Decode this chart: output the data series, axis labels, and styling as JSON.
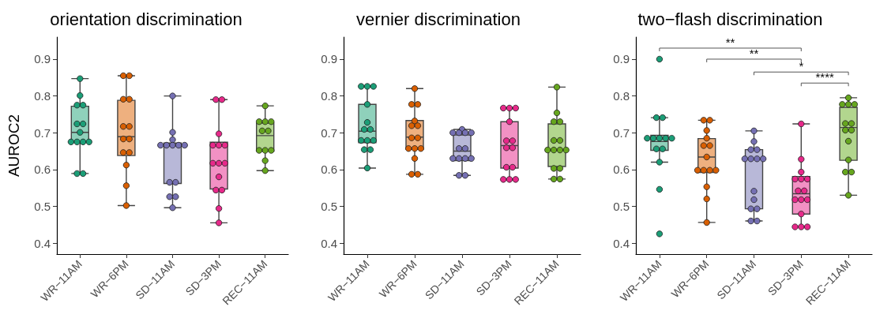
{
  "chart_data": [
    {
      "type": "box",
      "title": "orientation discrimination",
      "ylabel": "AUROC2",
      "categories": [
        "WR−11AM",
        "WR−6PM",
        "SD−11AM",
        "SD−3PM",
        "REC−11AM"
      ],
      "ylim": [
        0.37,
        0.96
      ],
      "yticks": [
        0.4,
        0.5,
        0.6,
        0.7,
        0.8,
        0.9
      ],
      "grid": false,
      "marker": "circle",
      "series": [
        {
          "colors": [
            "#8fd1bb",
            "#eeb07f",
            "#b8b8d8",
            "#f291c4",
            "#b2d68e"
          ],
          "boxes": [
            {
              "low": 0.589,
              "q1": 0.675,
              "median": 0.701,
              "q3": 0.772,
              "high": 0.847
            },
            {
              "low": 0.502,
              "q1": 0.638,
              "median": 0.689,
              "q3": 0.788,
              "high": 0.855
            },
            {
              "low": 0.496,
              "q1": 0.562,
              "median": 0.665,
              "q3": 0.672,
              "high": 0.8
            },
            {
              "low": 0.455,
              "q1": 0.547,
              "median": 0.618,
              "q3": 0.674,
              "high": 0.79
            },
            {
              "low": 0.597,
              "q1": 0.65,
              "median": 0.692,
              "q3": 0.726,
              "high": 0.773
            }
          ]
        },
        {
          "type": "scatter",
          "color": "#1b9e77",
          "x": [
            "WR−11AM",
            "WR−11AM",
            "WR−11AM",
            "WR−11AM",
            "WR−11AM",
            "WR−11AM",
            "WR−11AM",
            "WR−11AM",
            "WR−11AM",
            "WR−11AM",
            "WR−11AM",
            "WR−11AM",
            "WR−11AM"
          ],
          "values": [
            0.847,
            0.801,
            0.775,
            0.775,
            0.724,
            0.724,
            0.701,
            0.675,
            0.675,
            0.675,
            0.675,
            0.589,
            0.589
          ]
        },
        {
          "type": "scatter",
          "color": "#d95f02",
          "x": [
            "WR−6PM",
            "WR−6PM",
            "WR−6PM",
            "WR−6PM",
            "WR−6PM",
            "WR−6PM",
            "WR−6PM",
            "WR−6PM",
            "WR−6PM",
            "WR−6PM",
            "WR−6PM",
            "WR−6PM",
            "WR−6PM"
          ],
          "values": [
            0.855,
            0.855,
            0.791,
            0.791,
            0.717,
            0.717,
            0.683,
            0.683,
            0.646,
            0.646,
            0.612,
            0.556,
            0.502
          ]
        },
        {
          "type": "scatter",
          "color": "#7570b3",
          "x": [
            "SD−11AM",
            "SD−11AM",
            "SD−11AM",
            "SD−11AM",
            "SD−11AM",
            "SD−11AM",
            "SD−11AM",
            "SD−11AM",
            "SD−11AM",
            "SD−11AM",
            "SD−11AM",
            "SD−11AM",
            "SD−11AM"
          ],
          "values": [
            0.8,
            0.701,
            0.681,
            0.666,
            0.666,
            0.666,
            0.666,
            0.666,
            0.565,
            0.565,
            0.526,
            0.526,
            0.496
          ]
        },
        {
          "type": "scatter",
          "color": "#e7298a",
          "x": [
            "SD−3PM",
            "SD−3PM",
            "SD−3PM",
            "SD−3PM",
            "SD−3PM",
            "SD−3PM",
            "SD−3PM",
            "SD−3PM",
            "SD−3PM",
            "SD−3PM",
            "SD−3PM",
            "SD−3PM",
            "SD−3PM",
            "SD−3PM"
          ],
          "values": [
            0.79,
            0.79,
            0.697,
            0.666,
            0.666,
            0.666,
            0.617,
            0.617,
            0.617,
            0.58,
            0.544,
            0.544,
            0.494,
            0.455
          ]
        },
        {
          "type": "scatter",
          "color": "#66a61e",
          "x": [
            "REC−11AM",
            "REC−11AM",
            "REC−11AM",
            "REC−11AM",
            "REC−11AM",
            "REC−11AM",
            "REC−11AM",
            "REC−11AM",
            "REC−11AM",
            "REC−11AM",
            "REC−11AM"
          ],
          "values": [
            0.773,
            0.73,
            0.73,
            0.73,
            0.705,
            0.705,
            0.652,
            0.652,
            0.652,
            0.624,
            0.597
          ]
        }
      ]
    },
    {
      "type": "box",
      "title": "vernier discrimination",
      "categories": [
        "WR−11AM",
        "WR−6PM",
        "SD−11AM",
        "SD−3PM",
        "REC−11AM"
      ],
      "ylim": [
        0.37,
        0.96
      ],
      "yticks": [
        0.4,
        0.5,
        0.6,
        0.7,
        0.8,
        0.9
      ],
      "grid": false,
      "marker": "circle",
      "series": [
        {
          "colors": [
            "#8fd1bb",
            "#eeb07f",
            "#b8b8d8",
            "#f291c4",
            "#b2d68e"
          ],
          "boxes": [
            {
              "low": 0.604,
              "q1": 0.673,
              "median": 0.704,
              "q3": 0.777,
              "high": 0.826
            },
            {
              "low": 0.587,
              "q1": 0.655,
              "median": 0.688,
              "q3": 0.733,
              "high": 0.82
            },
            {
              "low": 0.584,
              "q1": 0.624,
              "median": 0.65,
              "q3": 0.694,
              "high": 0.709
            },
            {
              "low": 0.573,
              "q1": 0.604,
              "median": 0.665,
              "q3": 0.73,
              "high": 0.767
            },
            {
              "low": 0.574,
              "q1": 0.608,
              "median": 0.653,
              "q3": 0.724,
              "high": 0.824
            }
          ]
        },
        {
          "type": "scatter",
          "color": "#1b9e77",
          "x": [
            "WR−11AM",
            "WR−11AM",
            "WR−11AM",
            "WR−11AM",
            "WR−11AM",
            "WR−11AM",
            "WR−11AM",
            "WR−11AM",
            "WR−11AM",
            "WR−11AM",
            "WR−11AM",
            "WR−11AM",
            "WR−11AM"
          ],
          "values": [
            0.826,
            0.826,
            0.826,
            0.777,
            0.728,
            0.709,
            0.709,
            0.679,
            0.679,
            0.679,
            0.654,
            0.654,
            0.604
          ]
        },
        {
          "type": "scatter",
          "color": "#d95f02",
          "x": [
            "WR−6PM",
            "WR−6PM",
            "WR−6PM",
            "WR−6PM",
            "WR−6PM",
            "WR−6PM",
            "WR−6PM",
            "WR−6PM",
            "WR−6PM",
            "WR−6PM",
            "WR−6PM",
            "WR−6PM",
            "WR−6PM",
            "WR−6PM"
          ],
          "values": [
            0.82,
            0.777,
            0.777,
            0.732,
            0.719,
            0.719,
            0.686,
            0.686,
            0.657,
            0.657,
            0.657,
            0.63,
            0.587,
            0.587
          ]
        },
        {
          "type": "scatter",
          "color": "#7570b3",
          "x": [
            "SD−11AM",
            "SD−11AM",
            "SD−11AM",
            "SD−11AM",
            "SD−11AM",
            "SD−11AM",
            "SD−11AM",
            "SD−11AM",
            "SD−11AM",
            "SD−11AM",
            "SD−11AM",
            "SD−11AM",
            "SD−11AM"
          ],
          "values": [
            0.709,
            0.7,
            0.7,
            0.7,
            0.7,
            0.657,
            0.657,
            0.63,
            0.63,
            0.63,
            0.63,
            0.584,
            0.584
          ]
        },
        {
          "type": "scatter",
          "color": "#e7298a",
          "x": [
            "SD−3PM",
            "SD−3PM",
            "SD−3PM",
            "SD−3PM",
            "SD−3PM",
            "SD−3PM",
            "SD−3PM",
            "SD−3PM",
            "SD−3PM",
            "SD−3PM",
            "SD−3PM",
            "SD−3PM",
            "SD−3PM"
          ],
          "values": [
            0.767,
            0.767,
            0.767,
            0.73,
            0.678,
            0.678,
            0.659,
            0.659,
            0.606,
            0.606,
            0.573,
            0.573,
            0.573
          ]
        },
        {
          "type": "scatter",
          "color": "#66a61e",
          "x": [
            "REC−11AM",
            "REC−11AM",
            "REC−11AM",
            "REC−11AM",
            "REC−11AM",
            "REC−11AM",
            "REC−11AM",
            "REC−11AM",
            "REC−11AM",
            "REC−11AM",
            "REC−11AM",
            "REC−11AM",
            "REC−11AM",
            "REC−11AM"
          ],
          "values": [
            0.824,
            0.754,
            0.73,
            0.73,
            0.679,
            0.679,
            0.653,
            0.653,
            0.653,
            0.653,
            0.603,
            0.603,
            0.574,
            0.574
          ]
        }
      ]
    },
    {
      "type": "box",
      "title": "two−flash discrimination",
      "categories": [
        "WR−11AM",
        "WR−6PM",
        "SD−11AM",
        "SD−3PM",
        "REC−11AM"
      ],
      "ylim": [
        0.37,
        0.96
      ],
      "yticks": [
        0.4,
        0.5,
        0.6,
        0.7,
        0.8,
        0.9
      ],
      "grid": false,
      "marker": "circle",
      "annotations": [
        "**",
        "**",
        "*",
        "****"
      ],
      "series": [
        {
          "colors": [
            "#8fd1bb",
            "#eeb07f",
            "#b8b8d8",
            "#f291c4",
            "#b2d68e"
          ],
          "boxes": [
            {
              "low": 0.62,
              "q1": 0.652,
              "median": 0.676,
              "q3": 0.693,
              "high": 0.741
            },
            {
              "low": 0.456,
              "q1": 0.592,
              "median": 0.634,
              "q3": 0.684,
              "high": 0.734
            },
            {
              "low": 0.46,
              "q1": 0.493,
              "median": 0.629,
              "q3": 0.654,
              "high": 0.705
            },
            {
              "low": 0.444,
              "q1": 0.479,
              "median": 0.534,
              "q3": 0.581,
              "high": 0.724
            },
            {
              "low": 0.53,
              "q1": 0.625,
              "median": 0.714,
              "q3": 0.769,
              "high": 0.795
            }
          ]
        },
        {
          "type": "scatter",
          "color": "#1b9e77",
          "x": [
            "WR−11AM",
            "WR−11AM",
            "WR−11AM",
            "WR−11AM",
            "WR−11AM",
            "WR−11AM",
            "WR−11AM",
            "WR−11AM",
            "WR−11AM",
            "WR−11AM",
            "WR−11AM",
            "WR−11AM",
            "WR−11AM"
          ],
          "values": [
            0.9,
            0.741,
            0.741,
            0.685,
            0.685,
            0.685,
            0.685,
            0.685,
            0.656,
            0.656,
            0.62,
            0.546,
            0.425
          ]
        },
        {
          "type": "scatter",
          "color": "#d95f02",
          "x": [
            "WR−6PM",
            "WR−6PM",
            "WR−6PM",
            "WR−6PM",
            "WR−6PM",
            "WR−6PM",
            "WR−6PM",
            "WR−6PM",
            "WR−6PM",
            "WR−6PM",
            "WR−6PM",
            "WR−6PM",
            "WR−6PM",
            "WR−6PM"
          ],
          "values": [
            0.734,
            0.734,
            0.706,
            0.685,
            0.665,
            0.665,
            0.634,
            0.598,
            0.598,
            0.598,
            0.598,
            0.553,
            0.52,
            0.456
          ]
        },
        {
          "type": "scatter",
          "color": "#7570b3",
          "x": [
            "SD−11AM",
            "SD−11AM",
            "SD−11AM",
            "SD−11AM",
            "SD−11AM",
            "SD−11AM",
            "SD−11AM",
            "SD−11AM",
            "SD−11AM",
            "SD−11AM",
            "SD−11AM",
            "SD−11AM",
            "SD−11AM",
            "SD−11AM"
          ],
          "values": [
            0.705,
            0.676,
            0.654,
            0.654,
            0.629,
            0.629,
            0.629,
            0.629,
            0.541,
            0.518,
            0.493,
            0.493,
            0.46,
            0.46
          ]
        },
        {
          "type": "scatter",
          "color": "#e7298a",
          "x": [
            "SD−3PM",
            "SD−3PM",
            "SD−3PM",
            "SD−3PM",
            "SD−3PM",
            "SD−3PM",
            "SD−3PM",
            "SD−3PM",
            "SD−3PM",
            "SD−3PM",
            "SD−3PM",
            "SD−3PM",
            "SD−3PM",
            "SD−3PM",
            "SD−3PM"
          ],
          "values": [
            0.724,
            0.628,
            0.593,
            0.574,
            0.574,
            0.574,
            0.542,
            0.542,
            0.518,
            0.518,
            0.518,
            0.479,
            0.444,
            0.444,
            0.444
          ]
        },
        {
          "type": "scatter",
          "color": "#66a61e",
          "x": [
            "REC−11AM",
            "REC−11AM",
            "REC−11AM",
            "REC−11AM",
            "REC−11AM",
            "REC−11AM",
            "REC−11AM",
            "REC−11AM",
            "REC−11AM",
            "REC−11AM",
            "REC−11AM",
            "REC−11AM",
            "REC−11AM"
          ],
          "values": [
            0.795,
            0.777,
            0.777,
            0.777,
            0.725,
            0.725,
            0.707,
            0.707,
            0.677,
            0.626,
            0.593,
            0.593,
            0.53
          ]
        }
      ]
    }
  ]
}
